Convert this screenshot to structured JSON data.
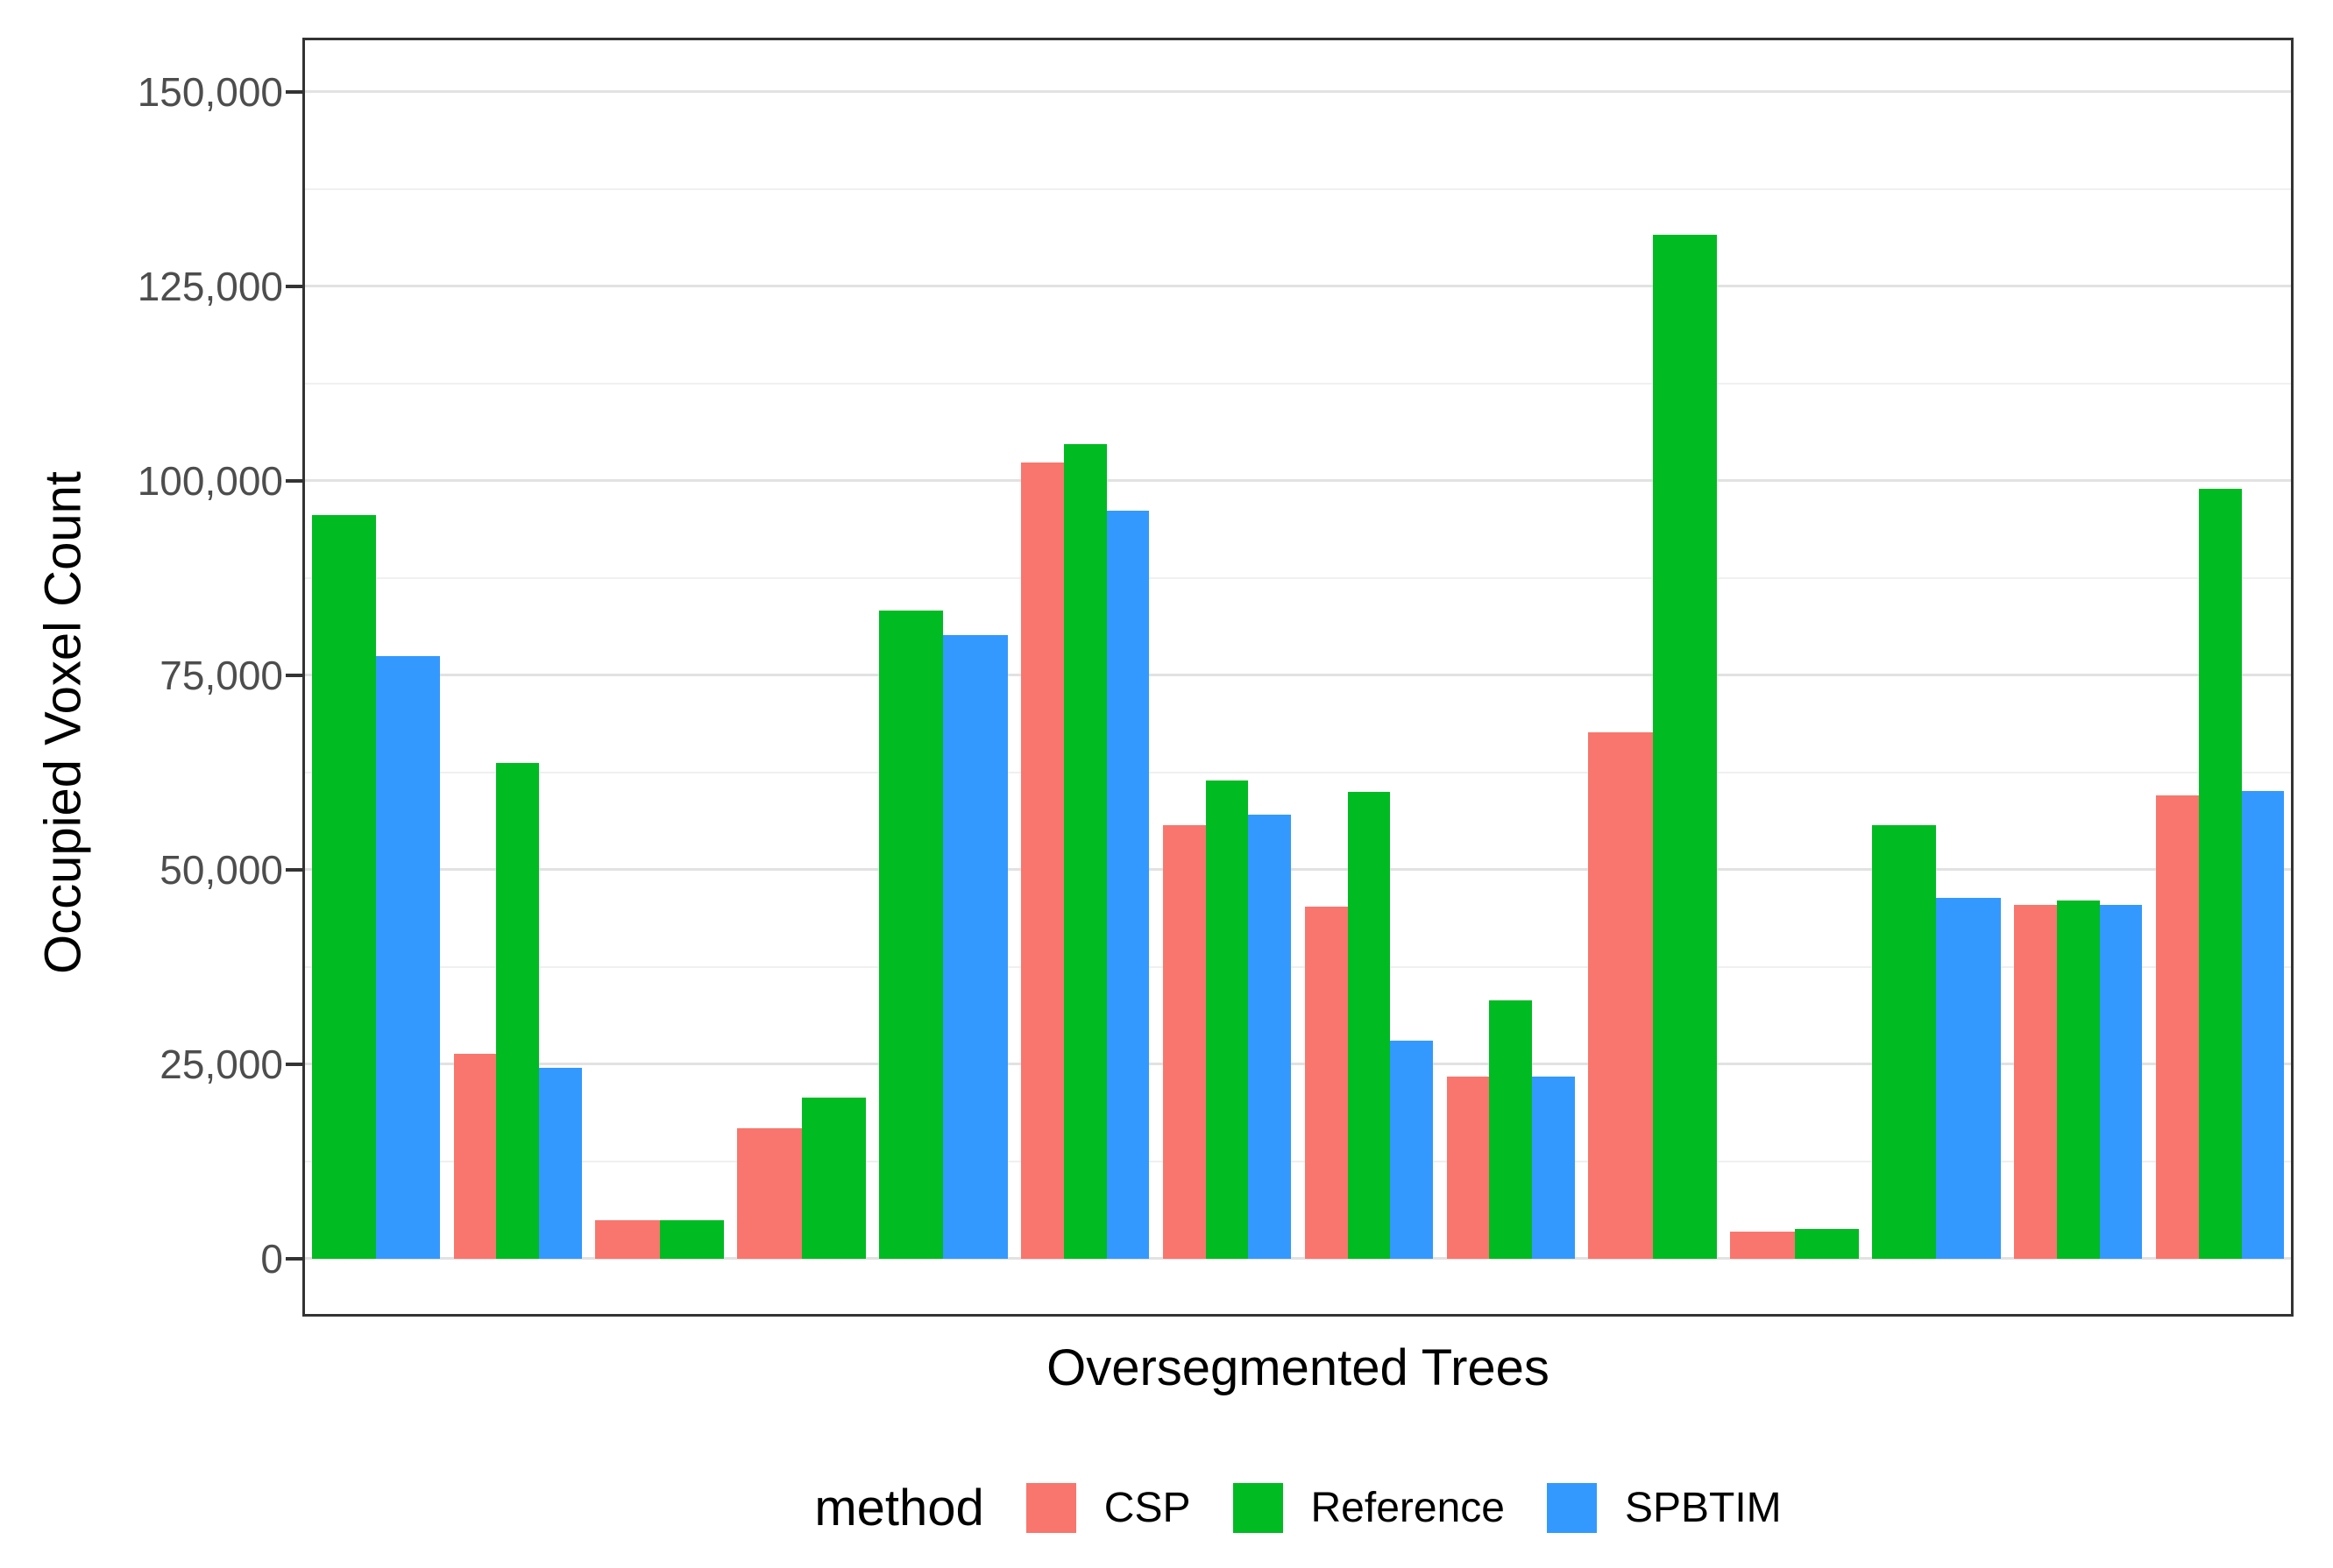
{
  "chart_data": {
    "type": "bar",
    "title": "",
    "xlabel": "Oversegmented Trees",
    "ylabel": "Occupied Voxel Count",
    "legend_title": "method",
    "legend_position": "bottom",
    "grid": true,
    "ylim": [
      0,
      157000
    ],
    "y_ticks": [
      0,
      25000,
      50000,
      75000,
      100000,
      125000,
      150000
    ],
    "y_tick_labels": [
      "0",
      "25,000",
      "50,000",
      "75,000",
      "100,000",
      "125,000",
      "150,000"
    ],
    "y_minor_ticks": [
      12500,
      37500,
      62500,
      87500,
      112500,
      137500
    ],
    "x_tick_labels": [],
    "n_groups": 14,
    "series": [
      {
        "name": "CSP",
        "color": "#F8766D"
      },
      {
        "name": "Reference",
        "color": "#00BB22"
      },
      {
        "name": "SPBTIM",
        "color": "#3399FF"
      }
    ],
    "values": [
      [
        null,
        95600,
        77500
      ],
      [
        26400,
        63700,
        24600
      ],
      [
        5000,
        5000,
        null
      ],
      [
        16800,
        20700,
        null
      ],
      [
        null,
        83400,
        80200
      ],
      [
        102400,
        104700,
        96200
      ],
      [
        55700,
        61500,
        57100
      ],
      [
        45300,
        60000,
        28000
      ],
      [
        23400,
        33200,
        23400
      ],
      [
        67700,
        131700,
        null
      ],
      [
        3500,
        3800,
        null
      ],
      [
        null,
        55800,
        46400
      ],
      [
        45500,
        46100,
        45500
      ],
      [
        59600,
        99000,
        60100
      ]
    ]
  },
  "style": {
    "background": "#FFFFFF",
    "grid_major_color": "#E2E2E2",
    "grid_minor_color": "#F0F0F0",
    "panel_border_color": "#333333",
    "tick_label_color": "#4D4D4D",
    "axis_title_color": "#000000"
  }
}
